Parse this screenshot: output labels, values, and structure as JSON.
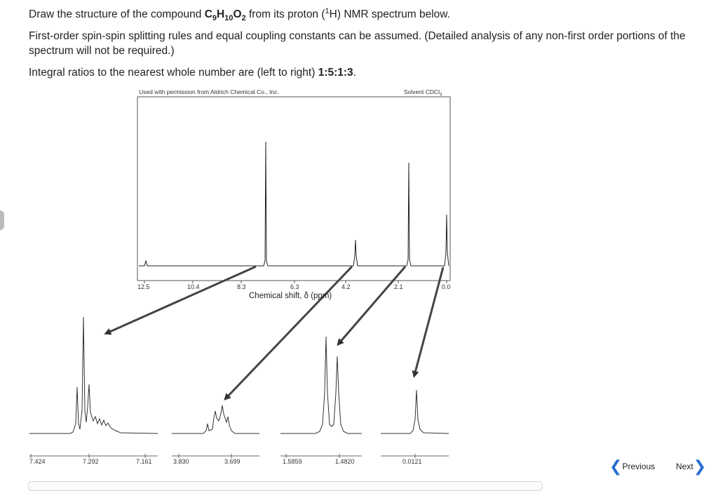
{
  "question": {
    "line1_prefix": "Draw the structure of the compound ",
    "formula": {
      "c": "C",
      "c_n": "9",
      "h": "H",
      "h_n": "10",
      "o": "O",
      "o_n": "2"
    },
    "line1_mid": " from its proton (",
    "iso_sup": "1",
    "line1_suffix": "H) NMR spectrum below.",
    "line2": "First-order spin-spin splitting rules and equal coupling constants can be assumed. (Detailed analysis of any non-first order portions of the spectrum will not be required.)",
    "line3_prefix": "Integral ratios to the nearest whole number are (left to right) ",
    "ratio": "1:5:1:3",
    "line3_suffix": "."
  },
  "spectrum": {
    "permission": "Used with permission from Aldrich Chemical Co., Inc.",
    "solvent_prefix": "Solvent CDCl",
    "solvent_sub": "3",
    "axis_ticks": [
      "12.5",
      "10.4",
      "8.3",
      "6.3",
      "4.2",
      "2.1",
      "0.0"
    ],
    "axis_label": "Chemical shift, δ (ppm)"
  },
  "expansions": [
    {
      "ticks": [
        "7.424",
        "7.292",
        "7.161"
      ]
    },
    {
      "ticks": [
        "3.830",
        "3.699"
      ]
    },
    {
      "ticks": [
        "1.5859",
        "1.4820"
      ]
    },
    {
      "ticks": [
        "0.0121"
      ]
    }
  ],
  "nav": {
    "previous": "Previous",
    "next": "Next"
  },
  "colors": {
    "nav_chevron": "#2a6fcf"
  }
}
